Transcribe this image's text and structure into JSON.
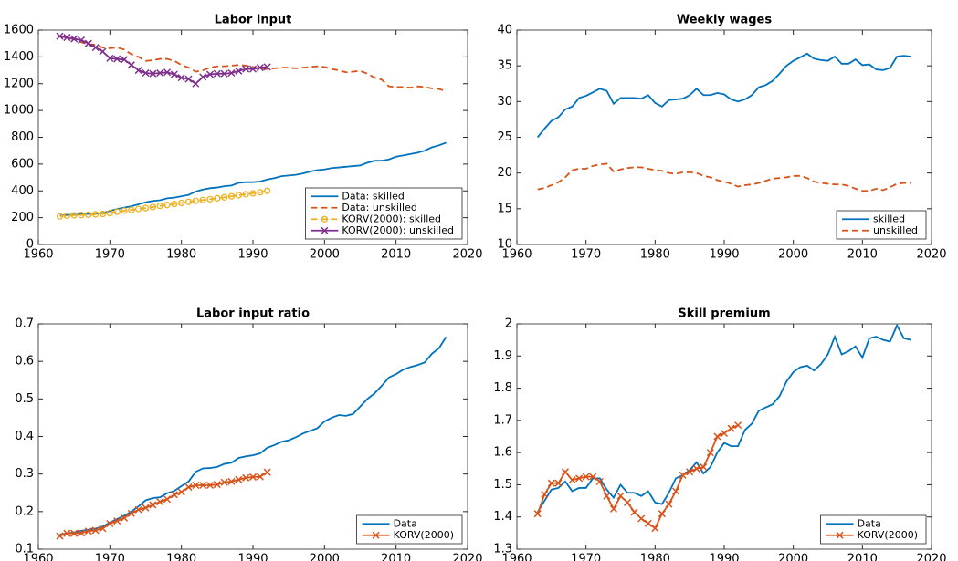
{
  "chart_data": [
    {
      "type": "line",
      "title": "Labor input",
      "x": [
        1963,
        1964,
        1965,
        1966,
        1967,
        1968,
        1969,
        1970,
        1971,
        1972,
        1973,
        1974,
        1975,
        1976,
        1977,
        1978,
        1979,
        1980,
        1981,
        1982,
        1983,
        1984,
        1985,
        1986,
        1987,
        1988,
        1989,
        1990,
        1991,
        1992,
        1993,
        1994,
        1995,
        1996,
        1997,
        1998,
        1999,
        2000,
        2001,
        2002,
        2003,
        2004,
        2005,
        2006,
        2007,
        2008,
        2009,
        2010,
        2011,
        2012,
        2013,
        2014,
        2015,
        2016,
        2017
      ],
      "series": [
        {
          "name": "Data: skilled",
          "color": "#0072bd",
          "dash": false,
          "marker": null,
          "values": [
            215,
            220,
            222,
            225,
            228,
            230,
            235,
            250,
            265,
            275,
            285,
            300,
            315,
            325,
            330,
            345,
            350,
            360,
            370,
            395,
            410,
            420,
            425,
            435,
            440,
            460,
            465,
            465,
            470,
            485,
            495,
            510,
            515,
            520,
            530,
            545,
            555,
            560,
            570,
            575,
            580,
            585,
            590,
            610,
            625,
            625,
            635,
            655,
            665,
            675,
            685,
            700,
            725,
            740,
            760
          ]
        },
        {
          "name": "Data: unskilled",
          "color": "#d95319",
          "dash": true,
          "marker": null,
          "values": [
            1550,
            1545,
            1530,
            1510,
            1495,
            1490,
            1470,
            1465,
            1470,
            1455,
            1420,
            1400,
            1370,
            1375,
            1385,
            1385,
            1370,
            1340,
            1320,
            1290,
            1300,
            1320,
            1330,
            1330,
            1335,
            1340,
            1335,
            1325,
            1310,
            1310,
            1315,
            1320,
            1320,
            1315,
            1320,
            1325,
            1330,
            1325,
            1310,
            1300,
            1285,
            1290,
            1295,
            1275,
            1245,
            1230,
            1180,
            1175,
            1175,
            1170,
            1180,
            1175,
            1165,
            1160,
            1145
          ]
        },
        {
          "name": "KORV(2000): skilled",
          "color": "#edb120",
          "dash": true,
          "marker": "o",
          "values": [
            210,
            215,
            218,
            220,
            222,
            225,
            228,
            235,
            245,
            252,
            258,
            265,
            272,
            280,
            288,
            295,
            302,
            310,
            318,
            325,
            332,
            338,
            345,
            352,
            360,
            368,
            375,
            382,
            390,
            400,
            null,
            null,
            null,
            null,
            null,
            null,
            null,
            null,
            null,
            null,
            null,
            null,
            null,
            null,
            null,
            null,
            null,
            null,
            null,
            null,
            null,
            null,
            null,
            null,
            null
          ]
        },
        {
          "name": "KORV(2000): unskilled",
          "color": "#7e2f8e",
          "dash": false,
          "marker": "x",
          "values": [
            1555,
            1545,
            1535,
            1525,
            1500,
            1470,
            1440,
            1390,
            1385,
            1380,
            1340,
            1300,
            1280,
            1275,
            1280,
            1285,
            1270,
            1245,
            1235,
            1200,
            1250,
            1270,
            1275,
            1275,
            1280,
            1295,
            1310,
            1310,
            1320,
            1325,
            null,
            null,
            null,
            null,
            null,
            null,
            null,
            null,
            null,
            null,
            null,
            null,
            null,
            null,
            null,
            null,
            null,
            null,
            null,
            null,
            null,
            null,
            null,
            null,
            null
          ]
        }
      ],
      "xlim": [
        1960,
        2020
      ],
      "xticks": [
        1960,
        1970,
        1980,
        1990,
        2000,
        2010,
        2020
      ],
      "ylim": [
        0,
        1600
      ],
      "yticks": [
        0,
        200,
        400,
        600,
        800,
        1000,
        1200,
        1400,
        1600
      ],
      "legend": "lower right"
    },
    {
      "type": "line",
      "title": "Weekly wages",
      "x": [
        1963,
        1964,
        1965,
        1966,
        1967,
        1968,
        1969,
        1970,
        1971,
        1972,
        1973,
        1974,
        1975,
        1976,
        1977,
        1978,
        1979,
        1980,
        1981,
        1982,
        1983,
        1984,
        1985,
        1986,
        1987,
        1988,
        1989,
        1990,
        1991,
        1992,
        1993,
        1994,
        1995,
        1996,
        1997,
        1998,
        1999,
        2000,
        2001,
        2002,
        2003,
        2004,
        2005,
        2006,
        2007,
        2008,
        2009,
        2010,
        2011,
        2012,
        2013,
        2014,
        2015,
        2016,
        2017
      ],
      "series": [
        {
          "name": "skilled",
          "color": "#0072bd",
          "dash": false,
          "marker": null,
          "values": [
            25,
            26.2,
            27.3,
            27.8,
            28.9,
            29.3,
            30.5,
            30.8,
            31.3,
            31.8,
            31.5,
            29.7,
            30.5,
            30.5,
            30.5,
            30.4,
            30.9,
            29.8,
            29.3,
            30.2,
            30.3,
            30.4,
            30.9,
            31.8,
            30.9,
            30.9,
            31.2,
            31,
            30.3,
            30,
            30.3,
            30.9,
            32,
            32.3,
            32.9,
            33.9,
            35,
            35.7,
            36.2,
            36.7,
            36,
            35.8,
            35.7,
            36.3,
            35.3,
            35.3,
            35.9,
            35.1,
            35.2,
            34.5,
            34.4,
            34.7,
            36.3,
            36.4,
            36.3
          ]
        },
        {
          "name": "unskilled",
          "color": "#d95319",
          "dash": true,
          "marker": null,
          "values": [
            17.7,
            17.9,
            18.3,
            18.7,
            19.4,
            20.4,
            20.6,
            20.6,
            21,
            21.2,
            21.3,
            20.2,
            20.5,
            20.7,
            20.8,
            20.8,
            20.6,
            20.4,
            20.3,
            20,
            19.9,
            20.1,
            20.1,
            20,
            19.6,
            19.4,
            19,
            18.8,
            18.5,
            18.1,
            18.3,
            18.4,
            18.6,
            18.9,
            19.2,
            19.3,
            19.4,
            19.6,
            19.6,
            19.3,
            18.8,
            18.6,
            18.5,
            18.4,
            18.4,
            18.2,
            17.8,
            17.5,
            17.5,
            17.8,
            17.6,
            18,
            18.5,
            18.6,
            18.6
          ]
        }
      ],
      "xlim": [
        1960,
        2020
      ],
      "xticks": [
        1960,
        1970,
        1980,
        1990,
        2000,
        2010,
        2020
      ],
      "ylim": [
        10,
        40
      ],
      "yticks": [
        10,
        15,
        20,
        25,
        30,
        35,
        40
      ],
      "legend": "lower right"
    },
    {
      "type": "line",
      "title": "Labor input ratio",
      "x": [
        1963,
        1964,
        1965,
        1966,
        1967,
        1968,
        1969,
        1970,
        1971,
        1972,
        1973,
        1974,
        1975,
        1976,
        1977,
        1978,
        1979,
        1980,
        1981,
        1982,
        1983,
        1984,
        1985,
        1986,
        1987,
        1988,
        1989,
        1990,
        1991,
        1992,
        1993,
        1994,
        1995,
        1996,
        1997,
        1998,
        1999,
        2000,
        2001,
        2002,
        2003,
        2004,
        2005,
        2006,
        2007,
        2008,
        2009,
        2010,
        2011,
        2012,
        2013,
        2014,
        2015,
        2016,
        2017
      ],
      "series": [
        {
          "name": "Data",
          "color": "#0072bd",
          "dash": false,
          "marker": null,
          "values": [
            0.139,
            0.142,
            0.145,
            0.149,
            0.152,
            0.155,
            0.16,
            0.171,
            0.18,
            0.189,
            0.2,
            0.214,
            0.23,
            0.236,
            0.238,
            0.249,
            0.255,
            0.268,
            0.28,
            0.306,
            0.315,
            0.316,
            0.319,
            0.327,
            0.33,
            0.343,
            0.347,
            0.35,
            0.355,
            0.37,
            0.377,
            0.386,
            0.39,
            0.398,
            0.408,
            0.415,
            0.422,
            0.44,
            0.45,
            0.457,
            0.455,
            0.46,
            0.48,
            0.5,
            0.515,
            0.535,
            0.557,
            0.566,
            0.578,
            0.585,
            0.59,
            0.597,
            0.62,
            0.635,
            0.665
          ]
        },
        {
          "name": "KORV(2000)",
          "color": "#d95319",
          "dash": false,
          "marker": "x",
          "values": [
            0.135,
            0.142,
            0.142,
            0.143,
            0.148,
            0.15,
            0.155,
            0.168,
            0.175,
            0.183,
            0.195,
            0.205,
            0.21,
            0.218,
            0.226,
            0.233,
            0.245,
            0.252,
            0.265,
            0.27,
            0.27,
            0.27,
            0.272,
            0.278,
            0.28,
            0.285,
            0.29,
            0.292,
            0.293,
            0.305,
            null,
            null,
            null,
            null,
            null,
            null,
            null,
            null,
            null,
            null,
            null,
            null,
            null,
            null,
            null,
            null,
            null,
            null,
            null,
            null,
            null,
            null,
            null,
            null,
            null
          ]
        }
      ],
      "xlim": [
        1960,
        2020
      ],
      "xticks": [
        1960,
        1970,
        1980,
        1990,
        2000,
        2010,
        2020
      ],
      "ylim": [
        0.1,
        0.7
      ],
      "yticks": [
        0.1,
        0.2,
        0.3,
        0.4,
        0.5,
        0.6,
        0.7
      ],
      "legend": "lower right"
    },
    {
      "type": "line",
      "title": "Skill premium",
      "x": [
        1963,
        1964,
        1965,
        1966,
        1967,
        1968,
        1969,
        1970,
        1971,
        1972,
        1973,
        1974,
        1975,
        1976,
        1977,
        1978,
        1979,
        1980,
        1981,
        1982,
        1983,
        1984,
        1985,
        1986,
        1987,
        1988,
        1989,
        1990,
        1991,
        1992,
        1993,
        1994,
        1995,
        1996,
        1997,
        1998,
        1999,
        2000,
        2001,
        2002,
        2003,
        2004,
        2005,
        2006,
        2007,
        2008,
        2009,
        2010,
        2011,
        2012,
        2013,
        2014,
        2015,
        2016,
        2017
      ],
      "series": [
        {
          "name": "Data",
          "color": "#0072bd",
          "dash": false,
          "marker": null,
          "values": [
            1.415,
            1.45,
            1.485,
            1.49,
            1.51,
            1.48,
            1.49,
            1.49,
            1.52,
            1.52,
            1.485,
            1.46,
            1.5,
            1.475,
            1.475,
            1.465,
            1.48,
            1.445,
            1.44,
            1.475,
            1.52,
            1.53,
            1.545,
            1.57,
            1.535,
            1.555,
            1.6,
            1.63,
            1.62,
            1.62,
            1.67,
            1.69,
            1.73,
            1.74,
            1.75,
            1.775,
            1.82,
            1.85,
            1.865,
            1.87,
            1.855,
            1.875,
            1.905,
            1.96,
            1.905,
            1.915,
            1.93,
            1.895,
            1.955,
            1.96,
            1.95,
            1.945,
            1.995,
            1.955,
            1.95
          ]
        },
        {
          "name": "KORV(2000)",
          "color": "#d95319",
          "dash": false,
          "marker": "x",
          "values": [
            1.41,
            1.47,
            1.505,
            1.505,
            1.54,
            1.515,
            1.52,
            1.525,
            1.525,
            1.51,
            1.465,
            1.425,
            1.465,
            1.445,
            1.415,
            1.395,
            1.38,
            1.365,
            1.41,
            1.44,
            1.48,
            1.53,
            1.54,
            1.55,
            1.555,
            1.6,
            1.65,
            1.66,
            1.675,
            1.685,
            null,
            null,
            null,
            null,
            null,
            null,
            null,
            null,
            null,
            null,
            null,
            null,
            null,
            null,
            null,
            null,
            null,
            null,
            null,
            null,
            null,
            null,
            null,
            null,
            null
          ]
        }
      ],
      "xlim": [
        1960,
        2020
      ],
      "xticks": [
        1960,
        1970,
        1980,
        1990,
        2000,
        2010,
        2020
      ],
      "ylim": [
        1.3,
        2
      ],
      "yticks": [
        1.3,
        1.4,
        1.5,
        1.6,
        1.7,
        1.8,
        1.9,
        2
      ],
      "legend": "lower right"
    }
  ]
}
